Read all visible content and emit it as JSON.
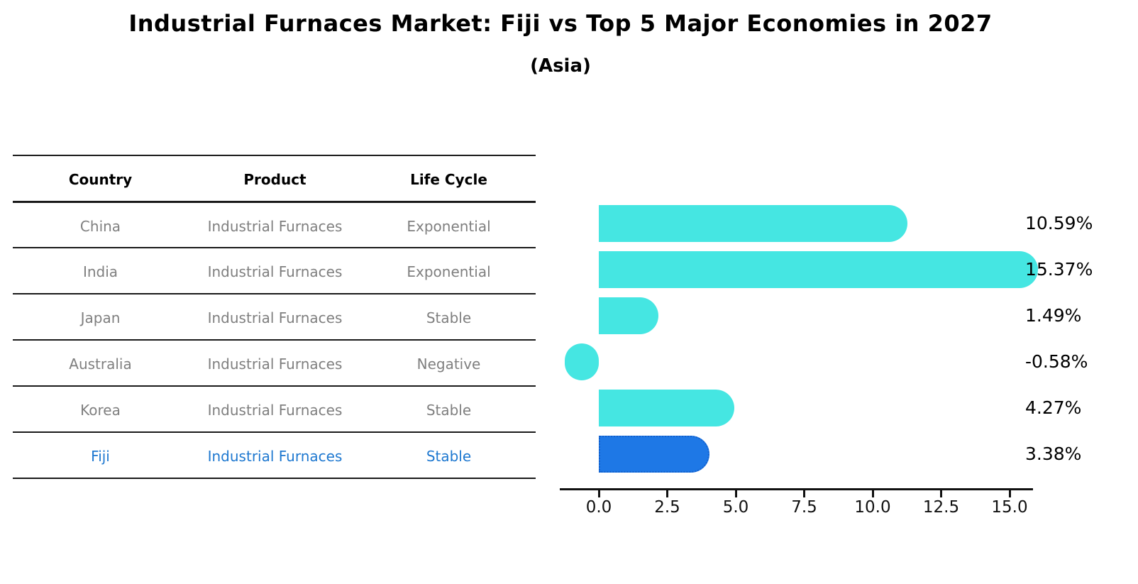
{
  "title": "Industrial Furnaces Market: Fiji vs Top 5 Major Economies in 2027",
  "subtitle": "(Asia)",
  "table": {
    "headers": [
      "Country",
      "Product",
      "Life Cycle"
    ],
    "rows": [
      {
        "country": "China",
        "product": "Industrial Furnaces",
        "life_cycle": "Exponential"
      },
      {
        "country": "India",
        "product": "Industrial Furnaces",
        "life_cycle": "Exponential"
      },
      {
        "country": "Japan",
        "product": "Industrial Furnaces",
        "life_cycle": "Stable"
      },
      {
        "country": "Australia",
        "product": "Industrial Furnaces",
        "life_cycle": "Negative"
      },
      {
        "country": "Korea",
        "product": "Industrial Furnaces",
        "life_cycle": "Stable"
      },
      {
        "country": "Fiji",
        "product": "Industrial Furnaces",
        "life_cycle": "Stable"
      }
    ],
    "highlight_row": "Fiji"
  },
  "chart_data": {
    "type": "bar",
    "orientation": "horizontal",
    "title": "Industrial Furnaces Market: Fiji vs Top 5 Major Economies in 2027",
    "subtitle": "(Asia)",
    "categories": [
      "China",
      "India",
      "Japan",
      "Australia",
      "Korea",
      "Fiji"
    ],
    "values": [
      10.59,
      15.37,
      1.49,
      -0.58,
      4.27,
      3.38
    ],
    "value_labels": [
      "10.59%",
      "15.37%",
      "1.49%",
      "-0.58%",
      "4.27%",
      "3.38%"
    ],
    "x_ticks": [
      0.0,
      2.5,
      5.0,
      7.5,
      10.0,
      12.5,
      15.0
    ],
    "x_tick_labels": [
      "0.0",
      "2.5",
      "5.0",
      "7.5",
      "10.0",
      "12.5",
      "15.0"
    ],
    "xlim": [
      -1.4,
      15.8
    ],
    "grid": false,
    "legend": false,
    "bar_color": "#45E6E2",
    "highlight_index": 5,
    "highlight_bar_color": "#1E78E6",
    "highlight_border_color": "#1360CC",
    "highlight_text_color": "#1E78D0",
    "muted_text_color": "#7f7f7f"
  }
}
